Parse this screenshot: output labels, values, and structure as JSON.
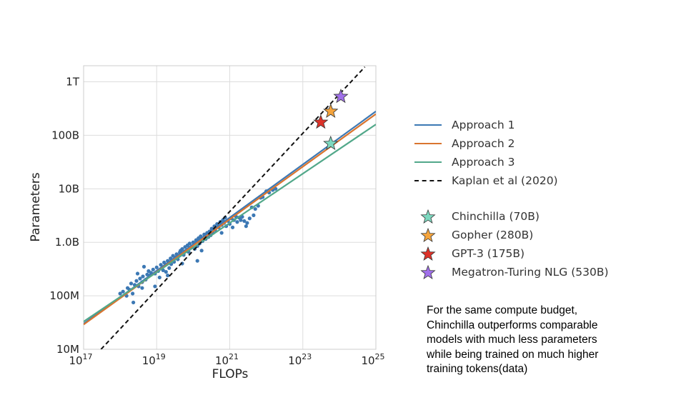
{
  "chart_data": {
    "type": "line",
    "xlabel": "FLOPs",
    "ylabel": "Parameters",
    "x_scale": "log",
    "y_scale": "log",
    "xlim": [
      1e+17,
      1e+25
    ],
    "ylim": [
      10000000.0,
      2000000000000.0
    ],
    "grid": true,
    "x_ticks": [
      {
        "value": 1e+17,
        "base": "10",
        "exp": "17"
      },
      {
        "value": 1e+19,
        "base": "10",
        "exp": "19"
      },
      {
        "value": 1e+21,
        "base": "10",
        "exp": "21"
      },
      {
        "value": 1e+23,
        "base": "10",
        "exp": "23"
      },
      {
        "value": 1e+25,
        "base": "10",
        "exp": "25"
      }
    ],
    "y_ticks": [
      {
        "value": 10000000.0,
        "label": "10M"
      },
      {
        "value": 100000000.0,
        "label": "100M"
      },
      {
        "value": 1000000000.0,
        "label": "1.0B"
      },
      {
        "value": 10000000000.0,
        "label": "10B"
      },
      {
        "value": 100000000000.0,
        "label": "100B"
      },
      {
        "value": 1000000000000.0,
        "label": "1T"
      }
    ],
    "series": [
      {
        "name": "Approach 1",
        "color": "#3c78b4",
        "style": "solid",
        "x": [
          1e+17,
          1e+25
        ],
        "y": [
          30000000.0,
          280000000000.0
        ]
      },
      {
        "name": "Approach 2",
        "color": "#d9752f",
        "style": "solid",
        "x": [
          1e+17,
          1e+25
        ],
        "y": [
          29000000.0,
          250000000000.0
        ]
      },
      {
        "name": "Approach 3",
        "color": "#52a88a",
        "style": "solid",
        "x": [
          1e+17,
          1e+25
        ],
        "y": [
          33000000.0,
          160000000000.0
        ]
      },
      {
        "name": "Kaplan et al (2020)",
        "color": "#111111",
        "style": "dashed",
        "x": [
          3e+17,
          5e+24
        ],
        "y": [
          10000000.0,
          1900000000000.0
        ]
      }
    ],
    "scatter": {
      "color": "#3c78b4",
      "points": [
        [
          1e+18,
          110000000.0
        ],
        [
          1.2e+18,
          120000000.0
        ],
        [
          1.5e+18,
          100000000.0
        ],
        [
          1.6e+18,
          140000000.0
        ],
        [
          1.8e+18,
          130000000.0
        ],
        [
          2e+18,
          170000000.0
        ],
        [
          2.2e+18,
          110000000.0
        ],
        [
          2.3e+18,
          75000000.0
        ],
        [
          2.5e+18,
          160000000.0
        ],
        [
          2.8e+18,
          190000000.0
        ],
        [
          3e+18,
          260000000.0
        ],
        [
          3.2e+18,
          150000000.0
        ],
        [
          3.5e+18,
          210000000.0
        ],
        [
          4e+18,
          180000000.0
        ],
        [
          4.2e+18,
          230000000.0
        ],
        [
          4.5e+18,
          350000000.0
        ],
        [
          5e+18,
          200000000.0
        ],
        [
          5.5e+18,
          250000000.0
        ],
        [
          6e+18,
          290000000.0
        ],
        [
          6.5e+18,
          240000000.0
        ],
        [
          7e+18,
          270000000.0
        ],
        [
          8e+18,
          310000000.0
        ],
        [
          9e+18,
          260000000.0
        ],
        [
          1e+19,
          340000000.0
        ],
        [
          1.1e+19,
          290000000.0
        ],
        [
          1.2e+19,
          220000000.0
        ],
        [
          1.3e+19,
          380000000.0
        ],
        [
          1.5e+19,
          300000000.0
        ],
        [
          1.6e+19,
          420000000.0
        ],
        [
          1.8e+19,
          280000000.0
        ],
        [
          2e+19,
          450000000.0
        ],
        [
          2.2e+19,
          330000000.0
        ],
        [
          2.4e+19,
          500000000.0
        ],
        [
          2.5e+19,
          390000000.0
        ],
        [
          2.8e+19,
          560000000.0
        ],
        [
          3e+19,
          430000000.0
        ],
        [
          3.2e+19,
          520000000.0
        ],
        [
          3.5e+19,
          600000000.0
        ],
        [
          3.8e+19,
          480000000.0
        ],
        [
          4e+19,
          550000000.0
        ],
        [
          4.3e+19,
          650000000.0
        ],
        [
          4.5e+19,
          700000000.0
        ],
        [
          4.8e+19,
          620000000.0
        ],
        [
          5e+19,
          750000000.0
        ],
        [
          5.5e+19,
          580000000.0
        ],
        [
          6e+19,
          820000000.0
        ],
        [
          6.5e+19,
          700000000.0
        ],
        [
          7e+19,
          880000000.0
        ],
        [
          7.5e+19,
          660000000.0
        ],
        [
          8e+19,
          950000000.0
        ],
        [
          9e+19,
          800000000.0
        ],
        [
          1e+20,
          1000000000.0
        ],
        [
          1.1e+20,
          750000000.0
        ],
        [
          1.2e+20,
          1100000000.0
        ],
        [
          1.3e+20,
          850000000.0
        ],
        [
          1.4e+20,
          1200000000.0
        ],
        [
          1.5e+20,
          950000000.0
        ],
        [
          1.6e+20,
          1300000000.0
        ],
        [
          1.8e+20,
          1050000000.0
        ],
        [
          2e+20,
          1400000000.0
        ],
        [
          2.2e+20,
          1150000000.0
        ],
        [
          2.4e+20,
          1500000000.0
        ],
        [
          2.6e+20,
          1250000000.0
        ],
        [
          2.8e+20,
          1600000000.0
        ],
        [
          3e+20,
          1350000000.0
        ],
        [
          3.2e+20,
          1800000000.0
        ],
        [
          3.5e+20,
          1500000000.0
        ],
        [
          3.8e+20,
          2000000000.0
        ],
        [
          4e+20,
          1700000000.0
        ],
        [
          4.5e+20,
          2200000000.0
        ],
        [
          5e+20,
          1900000000.0
        ],
        [
          5.5e+20,
          2400000000.0
        ],
        [
          6e+20,
          2100000000.0
        ],
        [
          6.5e+20,
          2600000000.0
        ],
        [
          7e+20,
          2300000000.0
        ],
        [
          7.5e+20,
          2900000000.0
        ],
        [
          8e+20,
          2000000000.0
        ],
        [
          9e+20,
          2500000000.0
        ],
        [
          1e+21,
          2200000000.0
        ],
        [
          1.1e+21,
          2800000000.0
        ],
        [
          1.2e+21,
          1900000000.0
        ],
        [
          1.3e+21,
          2600000000.0
        ],
        [
          1.5e+21,
          3000000000.0
        ],
        [
          1.6e+21,
          2400000000.0
        ],
        [
          1.8e+21,
          2900000000.0
        ],
        [
          2e+21,
          2600000000.0
        ],
        [
          2.2e+21,
          3000000000.0
        ],
        [
          2.5e+21,
          2500000000.0
        ],
        [
          2.8e+21,
          2000000000.0
        ],
        [
          3e+21,
          2300000000.0
        ],
        [
          3.5e+21,
          2800000000.0
        ],
        [
          4e+21,
          4500000000.0
        ],
        [
          4.5e+21,
          3200000000.0
        ],
        [
          5e+21,
          4200000000.0
        ],
        [
          6e+21,
          4800000000.0
        ],
        [
          7e+21,
          6800000000.0
        ],
        [
          8e+21,
          7000000000.0
        ],
        [
          1e+22,
          9000000000.0
        ],
        [
          1.2e+22,
          8500000000.0
        ],
        [
          1.5e+22,
          9500000000.0
        ],
        [
          1.8e+22,
          10000000000.0
        ],
        [
          1.3e+20,
          450000000.0
        ],
        [
          9e+18,
          150000000.0
        ],
        [
          4e+18,
          140000000.0
        ],
        [
          2e+19,
          240000000.0
        ],
        [
          5e+19,
          400000000.0
        ],
        [
          1.7e+20,
          700000000.0
        ],
        [
          6e+20,
          1500000000.0
        ]
      ]
    },
    "stars": [
      {
        "name": "Chinchilla (70B)",
        "color": "#7dd8bf",
        "x": 5.8e+23,
        "y": 70000000000.0
      },
      {
        "name": "Gopher (280B)",
        "color": "#f5a43c",
        "x": 5.8e+23,
        "y": 280000000000.0
      },
      {
        "name": "GPT-3 (175B)",
        "color": "#dd3229",
        "x": 3.1e+23,
        "y": 175000000000.0
      },
      {
        "name": "Megatron-Turing NLG (530B)",
        "color": "#a070ea",
        "x": 1.1e+24,
        "y": 530000000000.0
      }
    ]
  },
  "legend": {
    "lines": [
      {
        "label": "Approach 1",
        "color": "#3c78b4",
        "dashed": false
      },
      {
        "label": "Approach 2",
        "color": "#d9752f",
        "dashed": false
      },
      {
        "label": "Approach 3",
        "color": "#52a88a",
        "dashed": false
      },
      {
        "label": "Kaplan et al (2020)",
        "color": "#111111",
        "dashed": true
      }
    ],
    "models": [
      {
        "label": "Chinchilla (70B)",
        "color": "#7dd8bf"
      },
      {
        "label": "Gopher (280B)",
        "color": "#f5a43c"
      },
      {
        "label": "GPT-3 (175B)",
        "color": "#dd3229"
      },
      {
        "label": "Megatron-Turing NLG (530B)",
        "color": "#a070ea"
      }
    ]
  },
  "note": {
    "lines": [
      "For the same compute budget,",
      "Chinchilla outperforms comparable",
      "models with much less parameters",
      "while being trained on much higher",
      "training tokens(data)"
    ]
  }
}
